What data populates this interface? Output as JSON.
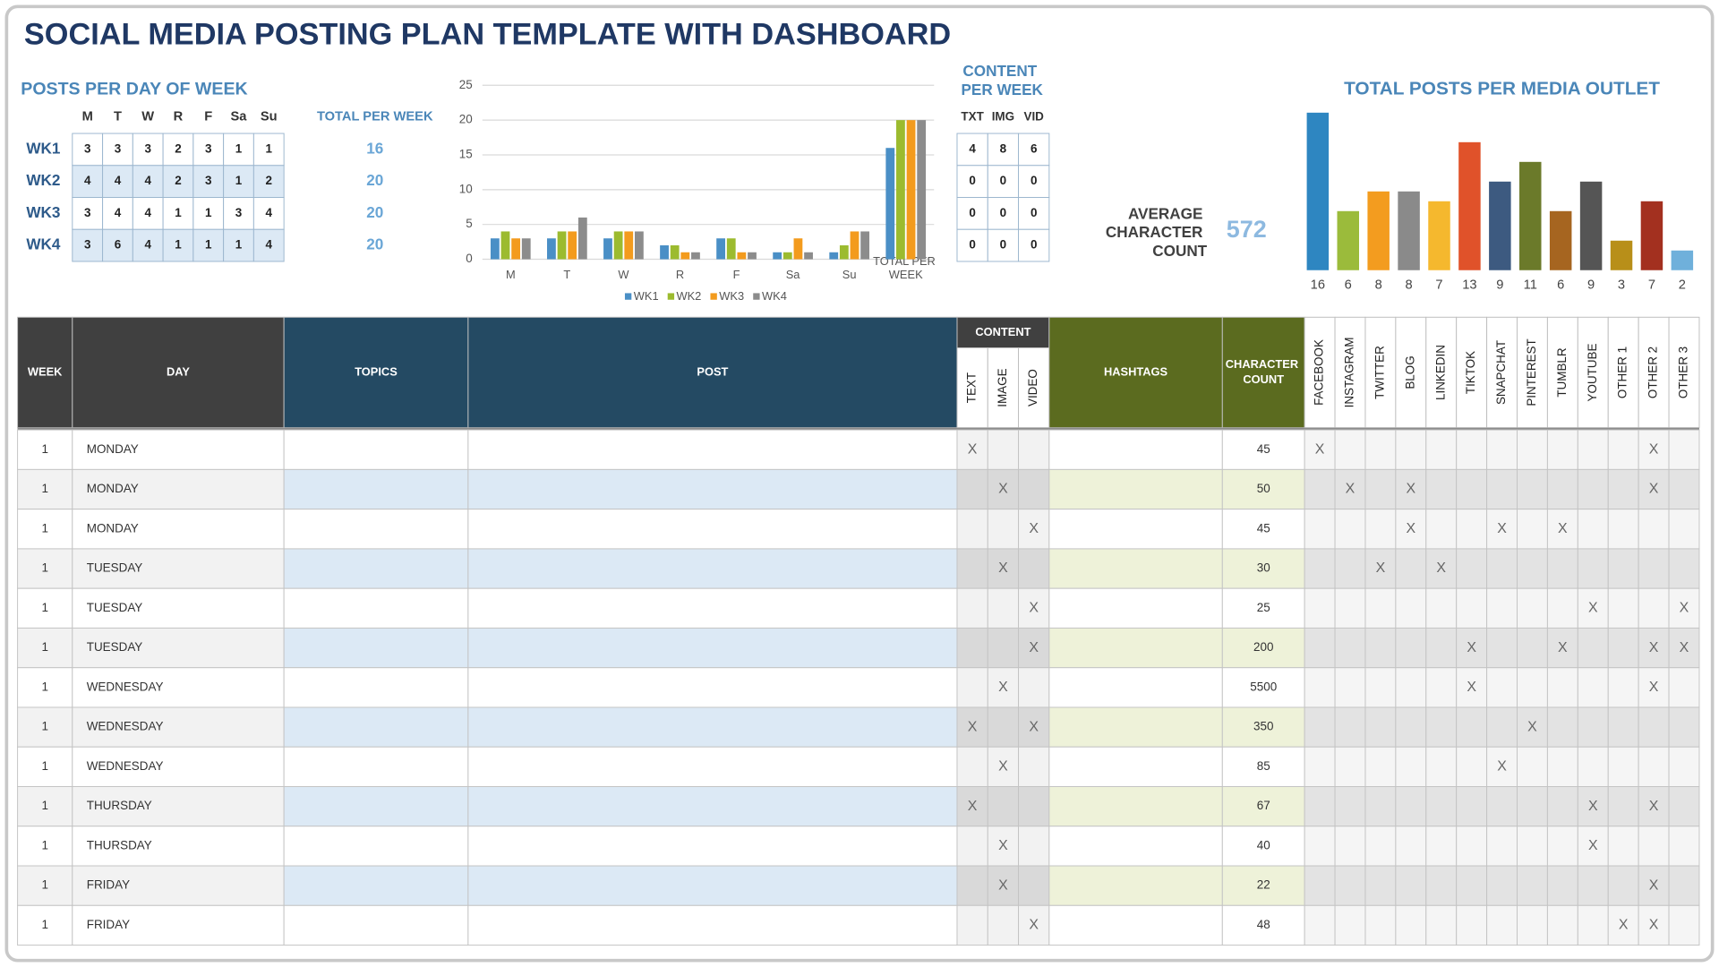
{
  "title": "SOCIAL MEDIA POSTING PLAN TEMPLATE WITH DASHBOARD",
  "posts_per_day": {
    "title": "POSTS PER DAY OF WEEK",
    "days": [
      "M",
      "T",
      "W",
      "R",
      "F",
      "Sa",
      "Su"
    ],
    "total_label": "TOTAL PER WEEK",
    "rows": [
      {
        "week": "WK1",
        "values": [
          3,
          3,
          3,
          2,
          3,
          1,
          1
        ],
        "total": 16
      },
      {
        "week": "WK2",
        "values": [
          4,
          4,
          4,
          2,
          3,
          1,
          2
        ],
        "total": 20
      },
      {
        "week": "WK3",
        "values": [
          3,
          4,
          4,
          1,
          1,
          3,
          4
        ],
        "total": 20
      },
      {
        "week": "WK4",
        "values": [
          3,
          6,
          4,
          1,
          1,
          1,
          4
        ],
        "total": 20
      }
    ]
  },
  "chart_data": [
    {
      "type": "bar",
      "categories": [
        "M",
        "T",
        "W",
        "R",
        "F",
        "Sa",
        "Su",
        "TOTAL PER WEEK"
      ],
      "series": [
        {
          "name": "WK1",
          "color": "#4a8fc6",
          "values": [
            3,
            3,
            3,
            2,
            3,
            1,
            1,
            16
          ]
        },
        {
          "name": "WK2",
          "color": "#9cbb2f",
          "values": [
            4,
            4,
            4,
            2,
            3,
            1,
            2,
            20
          ]
        },
        {
          "name": "WK3",
          "color": "#f39b1d",
          "values": [
            3,
            4,
            4,
            1,
            1,
            3,
            4,
            20
          ]
        },
        {
          "name": "WK4",
          "color": "#8c8c8c",
          "values": [
            3,
            6,
            4,
            1,
            1,
            1,
            4,
            20
          ]
        }
      ],
      "ylim": [
        0,
        25
      ],
      "yticks": [
        0,
        5,
        10,
        15,
        20,
        25
      ],
      "grid": true,
      "legend": "bottom"
    },
    {
      "type": "bar",
      "title": "TOTAL POSTS PER MEDIA OUTLET",
      "values": [
        16,
        6,
        8,
        8,
        7,
        13,
        9,
        11,
        6,
        9,
        3,
        7,
        2
      ],
      "colors": [
        "#2e86c1",
        "#9bbb3b",
        "#f39c1f",
        "#8a8a8a",
        "#f5b82e",
        "#e0522a",
        "#3d5a80",
        "#6b7a2a",
        "#a66520",
        "#555555",
        "#b88f19",
        "#a3301f",
        "#6fb0db"
      ]
    }
  ],
  "content_per_week": {
    "title": "CONTENT PER WEEK",
    "headers": [
      "TXT",
      "IMG",
      "VID"
    ],
    "rows": [
      [
        4,
        8,
        6
      ],
      [
        0,
        0,
        0
      ],
      [
        0,
        0,
        0
      ],
      [
        0,
        0,
        0
      ]
    ]
  },
  "average_character_count": {
    "label": "AVERAGE CHARACTER COUNT",
    "value": 572
  },
  "plan": {
    "content_group": "CONTENT",
    "headers": [
      "WEEK",
      "DAY",
      "TOPICS",
      "POST",
      "TEXT",
      "IMAGE",
      "VIDEO",
      "HASHTAGS",
      "CHARACTER COUNT",
      "FACEBOOK",
      "INSTAGRAM",
      "TWITTER",
      "BLOG",
      "LINKEDIN",
      "TIKTOK",
      "SNAPCHAT",
      "PINTEREST",
      "TUMBLR",
      "YOUTUBE",
      "OTHER 1",
      "OTHER 2",
      "OTHER 3"
    ],
    "rows": [
      [
        1,
        "MONDAY",
        null,
        null,
        "X",
        null,
        null,
        null,
        45,
        "X",
        null,
        null,
        null,
        null,
        null,
        null,
        null,
        null,
        null,
        null,
        "X",
        null
      ],
      [
        1,
        "MONDAY",
        null,
        null,
        null,
        "X",
        null,
        null,
        50,
        null,
        "X",
        null,
        "X",
        null,
        null,
        null,
        null,
        null,
        null,
        null,
        "X",
        null
      ],
      [
        1,
        "MONDAY",
        null,
        null,
        null,
        null,
        "X",
        null,
        45,
        null,
        null,
        null,
        "X",
        null,
        null,
        "X",
        null,
        "X",
        null,
        null,
        null,
        null
      ],
      [
        1,
        "TUESDAY",
        null,
        null,
        null,
        "X",
        null,
        null,
        30,
        null,
        null,
        "X",
        null,
        "X",
        null,
        null,
        null,
        null,
        null,
        null,
        null,
        null
      ],
      [
        1,
        "TUESDAY",
        null,
        null,
        null,
        null,
        "X",
        null,
        25,
        null,
        null,
        null,
        null,
        null,
        null,
        null,
        null,
        null,
        "X",
        null,
        null,
        "X"
      ],
      [
        1,
        "TUESDAY",
        null,
        null,
        null,
        null,
        "X",
        null,
        200,
        null,
        null,
        null,
        null,
        null,
        "X",
        null,
        null,
        "X",
        null,
        null,
        "X",
        "X"
      ],
      [
        1,
        "WEDNESDAY",
        null,
        null,
        null,
        "X",
        null,
        null,
        5500,
        null,
        null,
        null,
        null,
        null,
        "X",
        null,
        null,
        null,
        null,
        null,
        "X",
        null
      ],
      [
        1,
        "WEDNESDAY",
        null,
        null,
        "X",
        null,
        "X",
        null,
        350,
        null,
        null,
        null,
        null,
        null,
        null,
        null,
        "X",
        null,
        null,
        null,
        null,
        null
      ],
      [
        1,
        "WEDNESDAY",
        null,
        null,
        null,
        "X",
        null,
        null,
        85,
        null,
        null,
        null,
        null,
        null,
        null,
        "X",
        null,
        null,
        null,
        null,
        null,
        null
      ],
      [
        1,
        "THURSDAY",
        null,
        null,
        "X",
        null,
        null,
        null,
        67,
        null,
        null,
        null,
        null,
        null,
        null,
        null,
        null,
        null,
        "X",
        null,
        "X",
        null
      ],
      [
        1,
        "THURSDAY",
        null,
        null,
        null,
        "X",
        null,
        null,
        40,
        null,
        null,
        null,
        null,
        null,
        null,
        null,
        null,
        null,
        "X",
        null,
        null,
        null
      ],
      [
        1,
        "FRIDAY",
        null,
        null,
        null,
        "X",
        null,
        null,
        22,
        null,
        null,
        null,
        null,
        null,
        null,
        null,
        null,
        null,
        null,
        null,
        "X",
        null
      ],
      [
        1,
        "FRIDAY",
        null,
        null,
        null,
        null,
        "X",
        null,
        48,
        null,
        null,
        null,
        null,
        null,
        null,
        null,
        null,
        null,
        null,
        "X",
        "X",
        null
      ]
    ]
  }
}
